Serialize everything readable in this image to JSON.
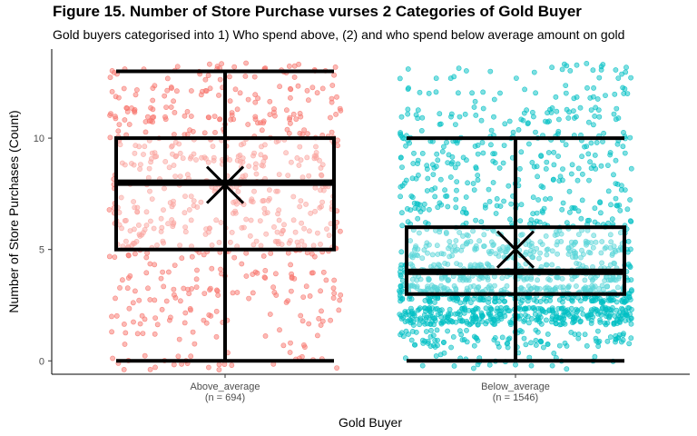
{
  "chart_data": {
    "type": "boxplot",
    "title": "Figure 15. Number of Store Purchase vurses 2 Categories of Gold Buyer",
    "subtitle": "Gold buyers categorised into 1) Who spend above, (2) and who spend below average amount on gold",
    "xlabel": "Gold Buyer",
    "ylabel": "Number of Store Purchases (Count)",
    "ylim": [
      -0.6,
      14.0
    ],
    "yticks": [
      0,
      5,
      10
    ],
    "grid": false,
    "legend": "none",
    "categories": [
      {
        "name": "Above_average",
        "n_label": "(n = 694)",
        "n": 694,
        "color": "#f8766d",
        "whisker_low": 0,
        "q1": 5,
        "median": 8,
        "q3": 10,
        "whisker_high": 13,
        "mean": 7.9
      },
      {
        "name": "Below_average",
        "n_label": "(n = 1546)",
        "n": 1546,
        "color": "#00bfc4",
        "whisker_low": 0,
        "q1": 3,
        "median": 4,
        "q3": 6,
        "whisker_high": 10,
        "mean": 5.0
      }
    ]
  }
}
